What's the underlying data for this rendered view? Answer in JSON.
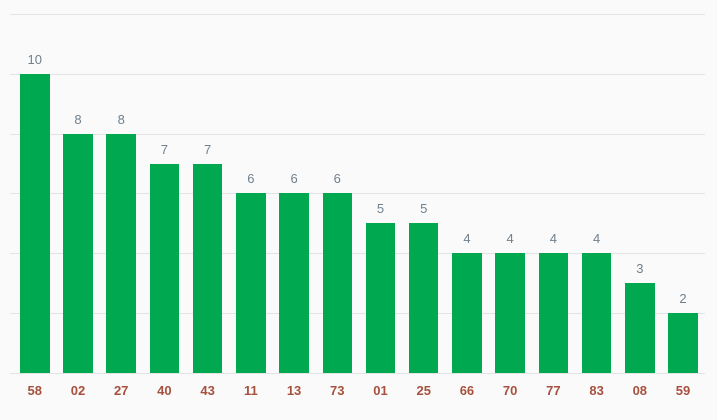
{
  "chart": {
    "background_color": "#fafafa",
    "bar_color": "#00a84f",
    "gridline_color": "#e3e3e3",
    "value_label_color": "#70808e",
    "x_label_color": "#a6513e"
  },
  "chart_data": {
    "type": "bar",
    "title": "",
    "xlabel": "",
    "ylabel": "",
    "categories": [
      "58",
      "02",
      "27",
      "40",
      "43",
      "11",
      "13",
      "73",
      "01",
      "25",
      "66",
      "70",
      "77",
      "83",
      "08",
      "59"
    ],
    "values": [
      10,
      8,
      8,
      7,
      7,
      6,
      6,
      6,
      5,
      5,
      4,
      4,
      4,
      4,
      3,
      2
    ],
    "ylim": [
      0,
      12
    ],
    "ytick_step": 2,
    "grid": true,
    "legend": "none",
    "annotations": "value shown above each bar"
  }
}
